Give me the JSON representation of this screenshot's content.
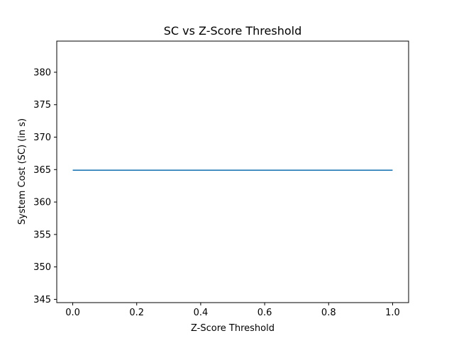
{
  "chart_data": {
    "type": "line",
    "title": "SC vs Z-Score Threshold",
    "xlabel": "Z-Score Threshold",
    "ylabel": "System Cost (SC) (in s)",
    "xlim": [
      -0.05,
      1.05
    ],
    "ylim": [
      344.5,
      384.8
    ],
    "xticks": [
      0.0,
      0.2,
      0.4,
      0.6,
      0.8,
      1.0
    ],
    "xtick_labels": [
      "0.0",
      "0.2",
      "0.4",
      "0.6",
      "0.8",
      "1.0"
    ],
    "yticks": [
      345,
      350,
      355,
      360,
      365,
      370,
      375,
      380
    ],
    "ytick_labels": [
      "345",
      "350",
      "355",
      "360",
      "365",
      "370",
      "375",
      "380"
    ],
    "grid": false,
    "series": [
      {
        "name": "SC",
        "color": "#1f77b4",
        "x": [
          0.0,
          1.0
        ],
        "y": [
          364.9,
          364.9
        ]
      }
    ]
  }
}
